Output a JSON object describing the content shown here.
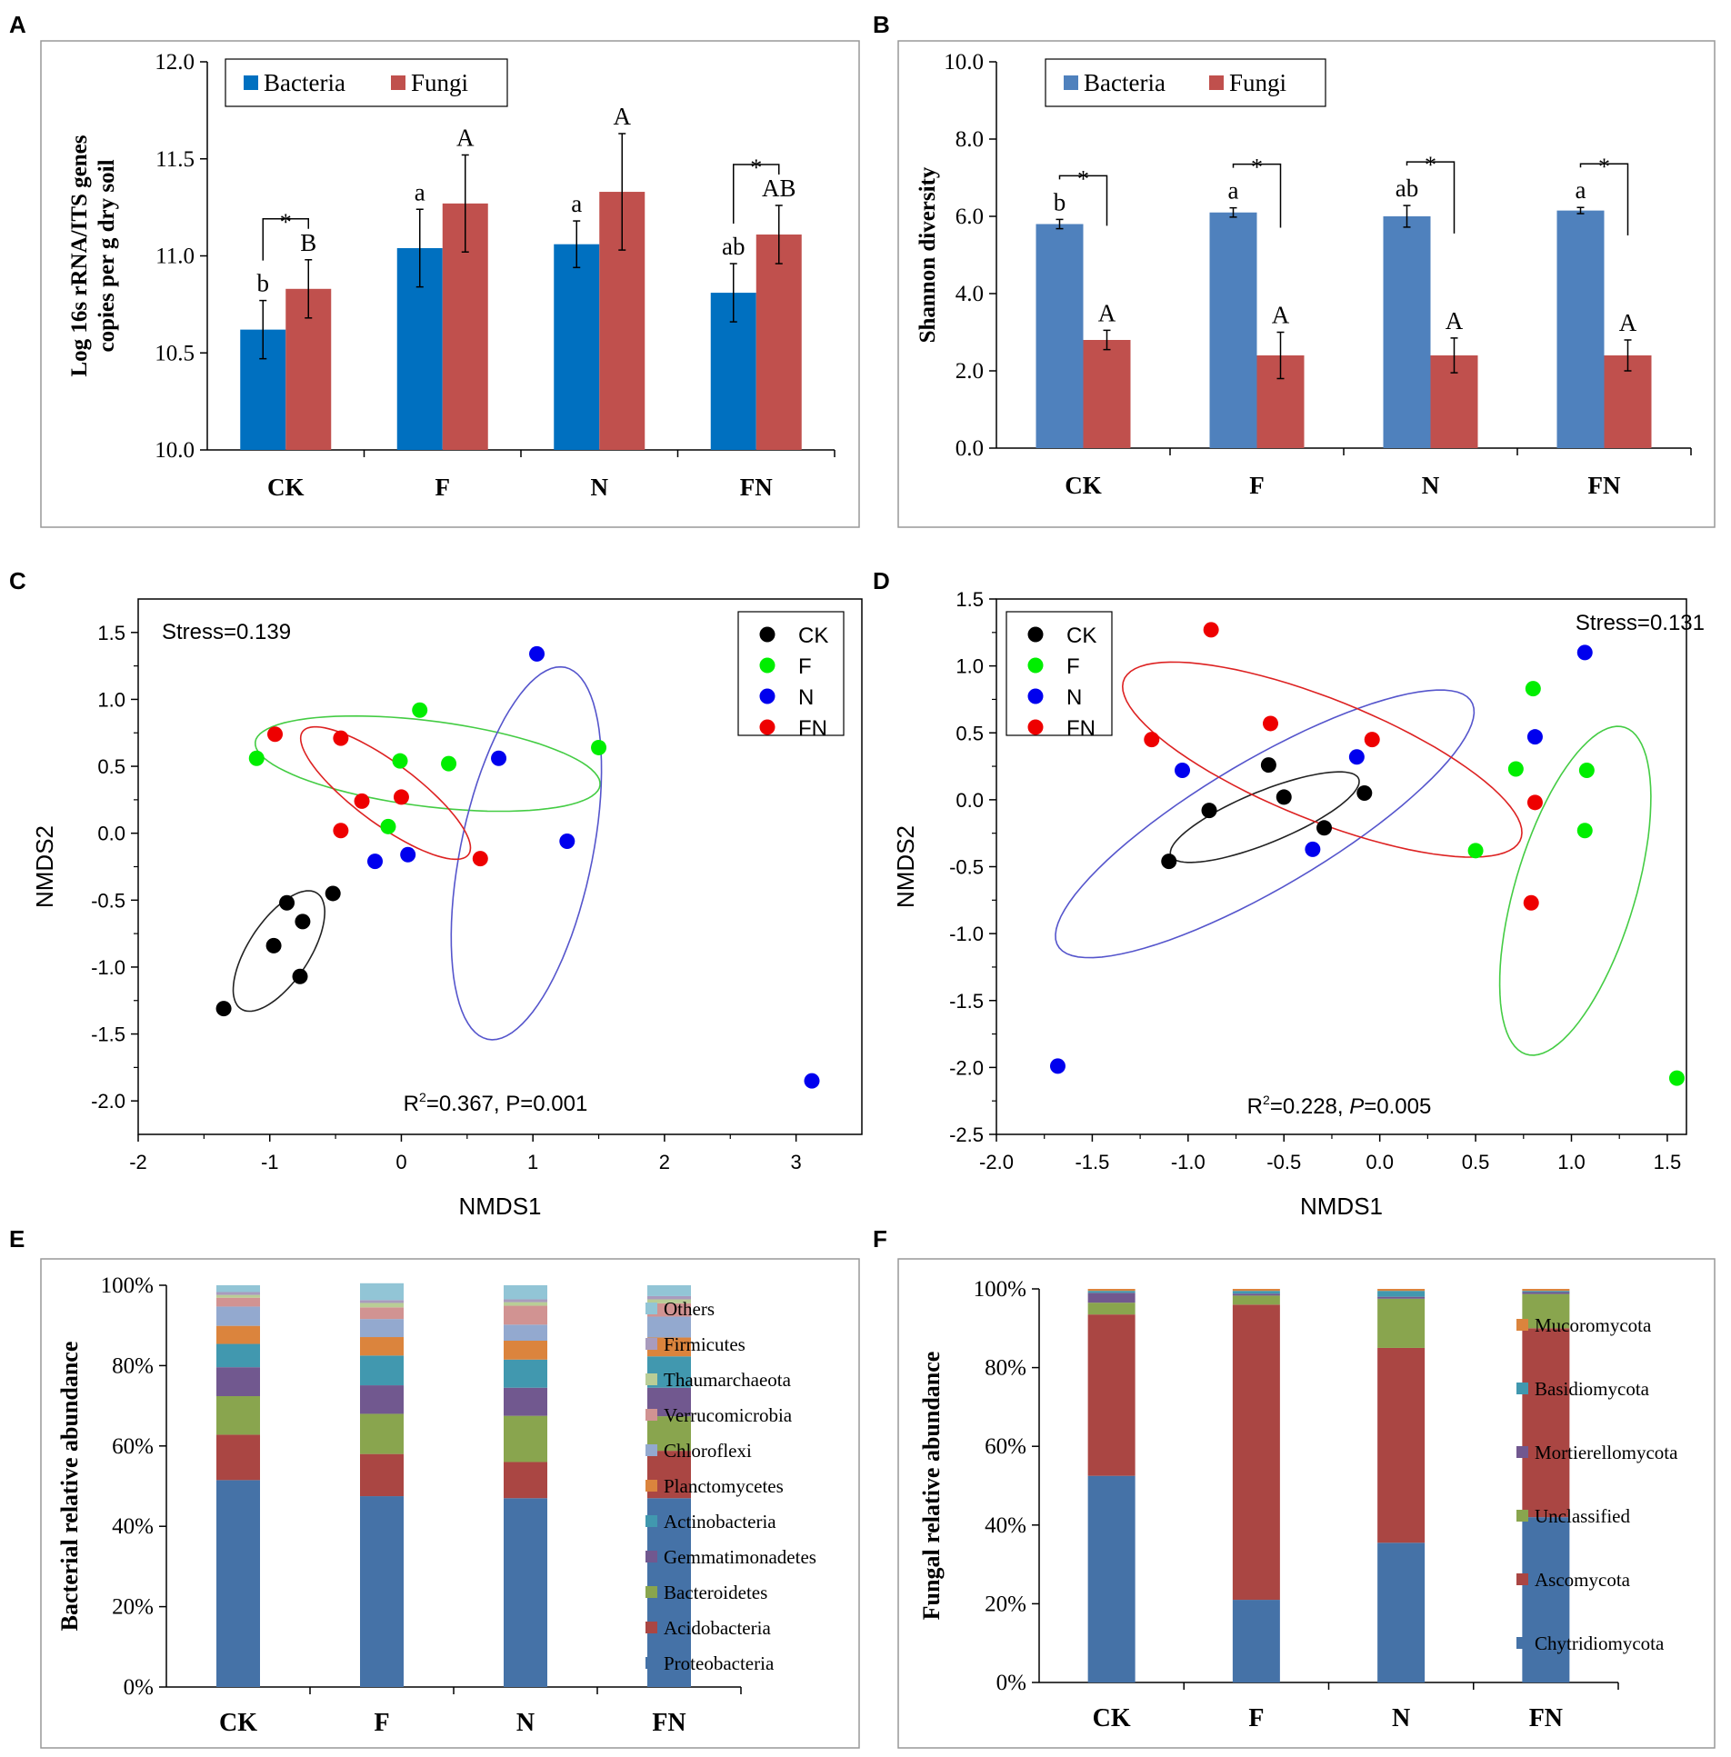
{
  "panel_labels": [
    "A",
    "B",
    "C",
    "D",
    "E",
    "F"
  ],
  "colors": {
    "bacteria": "#0070c0",
    "fungi": "#c0504d",
    "bacteria_b": "#4f81bd",
    "fungi_b": "#c0504d",
    "CK": "#000000",
    "F": "#00ee00",
    "N": "#0000ee",
    "FN": "#ee0000",
    "ellipse_CK": "#222222",
    "ellipse_F": "#44cc44",
    "ellipse_N": "#5555cc",
    "ellipse_FN": "#dd2222"
  },
  "chart_data": [
    {
      "id": "A",
      "type": "bar",
      "ylabel": [
        "Log 16s rRNA/ITS genes",
        "copies per g dry soil"
      ],
      "ylim": [
        10.0,
        12.0
      ],
      "yticks": [
        "10.0",
        "10.5",
        "11.0",
        "11.5",
        "12.0"
      ],
      "categories": [
        "CK",
        "F",
        "N",
        "FN"
      ],
      "legend": [
        "Bacteria",
        "Fungi"
      ],
      "series": [
        {
          "name": "Bacteria",
          "values": [
            10.62,
            11.04,
            11.06,
            10.81
          ],
          "errors": [
            0.15,
            0.2,
            0.12,
            0.15
          ],
          "labels": [
            "b",
            "a",
            "a",
            "ab"
          ]
        },
        {
          "name": "Fungi",
          "values": [
            10.83,
            11.27,
            11.33,
            11.11
          ],
          "errors": [
            0.15,
            0.25,
            0.3,
            0.15
          ],
          "labels": [
            "B",
            "A",
            "A",
            "AB"
          ]
        }
      ],
      "significance": [
        "*",
        "",
        "",
        "*"
      ]
    },
    {
      "id": "B",
      "type": "bar",
      "ylabel": [
        "Shannon diversity"
      ],
      "ylim": [
        0.0,
        10.0
      ],
      "yticks": [
        "0.0",
        "2.0",
        "4.0",
        "6.0",
        "8.0",
        "10.0"
      ],
      "categories": [
        "CK",
        "F",
        "N",
        "FN"
      ],
      "legend": [
        "Bacteria",
        "Fungi"
      ],
      "series": [
        {
          "name": "Bacteria",
          "values": [
            5.8,
            6.1,
            6.0,
            6.15
          ],
          "errors": [
            0.12,
            0.12,
            0.28,
            0.08
          ],
          "labels": [
            "b",
            "a",
            "ab",
            "a"
          ]
        },
        {
          "name": "Fungi",
          "values": [
            2.8,
            2.4,
            2.4,
            2.4
          ],
          "errors": [
            0.25,
            0.6,
            0.45,
            0.4
          ],
          "labels": [
            "A",
            "A",
            "A",
            "A"
          ]
        }
      ],
      "significance": [
        "*",
        "*",
        "*",
        "*"
      ]
    },
    {
      "id": "C",
      "type": "scatter",
      "xlabel": "NMDS1",
      "ylabel": "NMDS2",
      "xlim": [
        -2,
        3.5
      ],
      "ylim": [
        -2.25,
        1.75
      ],
      "xticks": [
        -2,
        -1,
        0,
        1,
        2,
        3
      ],
      "xtick_labels": [
        "-2",
        "-1",
        "0",
        "1",
        "2",
        "3"
      ],
      "yticks": [
        -2.0,
        -1.5,
        -1.0,
        -0.5,
        0.0,
        0.5,
        1.0,
        1.5
      ],
      "ytick_labels": [
        "-2.0",
        "-1.5",
        "-1.0",
        "-0.5",
        "0.0",
        "0.5",
        "1.0",
        "1.5"
      ],
      "stress": "Stress=0.139",
      "stat_r2": "R",
      "stat_rest": "=0.367, P=0.001",
      "legend": [
        "CK",
        "F",
        "N",
        "FN"
      ],
      "groups": {
        "CK": [
          [
            -0.52,
            -0.45
          ],
          [
            -0.87,
            -0.52
          ],
          [
            -0.75,
            -0.66
          ],
          [
            -0.97,
            -0.84
          ],
          [
            -0.77,
            -1.07
          ],
          [
            -1.35,
            -1.31
          ]
        ],
        "F": [
          [
            -1.1,
            0.56
          ],
          [
            0.14,
            0.92
          ],
          [
            -0.01,
            0.54
          ],
          [
            0.36,
            0.52
          ],
          [
            1.5,
            0.64
          ],
          [
            -0.1,
            0.05
          ]
        ],
        "N": [
          [
            1.03,
            1.34
          ],
          [
            0.74,
            0.56
          ],
          [
            1.26,
            -0.06
          ],
          [
            -0.2,
            -0.21
          ],
          [
            0.05,
            -0.16
          ],
          [
            3.12,
            -1.85
          ]
        ],
        "FN": [
          [
            -0.96,
            0.74
          ],
          [
            -0.46,
            0.71
          ],
          [
            -0.3,
            0.24
          ],
          [
            0.0,
            0.27
          ],
          [
            -0.46,
            0.02
          ],
          [
            0.6,
            -0.19
          ]
        ]
      },
      "ellipses": {
        "CK": {
          "cx": -0.93,
          "cy": -0.88,
          "rx": 0.52,
          "ry": 0.23,
          "angle": 56
        },
        "F": {
          "cx": 0.2,
          "cy": 0.52,
          "rx": 1.32,
          "ry": 0.32,
          "angle": -7
        },
        "N": {
          "cx": 0.95,
          "cy": -0.15,
          "rx": 1.42,
          "ry": 0.5,
          "angle": 78
        },
        "FN": {
          "cx": -0.12,
          "cy": 0.3,
          "rx": 0.78,
          "ry": 0.23,
          "angle": -36
        }
      }
    },
    {
      "id": "D",
      "type": "scatter",
      "xlabel": "NMDS1",
      "ylabel": "NMDS2",
      "xlim": [
        -2.0,
        1.6
      ],
      "ylim": [
        -2.5,
        1.5
      ],
      "xticks": [
        -2.0,
        -1.5,
        -1.0,
        -0.5,
        0.0,
        0.5,
        1.0,
        1.5
      ],
      "xtick_labels": [
        "-2.0",
        "-1.5",
        "-1.0",
        "-0.5",
        "0.0",
        "0.5",
        "1.0",
        "1.5"
      ],
      "yticks": [
        -2.5,
        -2.0,
        -1.5,
        -1.0,
        -0.5,
        0.0,
        0.5,
        1.0,
        1.5
      ],
      "ytick_labels": [
        "-2.5",
        "-2.0",
        "-1.5",
        "-1.0",
        "-0.5",
        "0.0",
        "0.5",
        "1.0",
        "1.5"
      ],
      "stress": "Stress=0.131",
      "stat_r2": "R",
      "stat_mid": "=0.228, ",
      "stat_p": "P",
      "stat_end": "=0.005",
      "legend": [
        "CK",
        "F",
        "N",
        "FN"
      ],
      "groups": {
        "CK": [
          [
            -1.1,
            -0.46
          ],
          [
            -0.89,
            -0.08
          ],
          [
            -0.58,
            0.26
          ],
          [
            -0.5,
            0.02
          ],
          [
            -0.29,
            -0.21
          ],
          [
            -0.08,
            0.05
          ]
        ],
        "F": [
          [
            0.8,
            0.83
          ],
          [
            0.71,
            0.23
          ],
          [
            1.08,
            0.22
          ],
          [
            0.5,
            -0.38
          ],
          [
            1.07,
            -0.23
          ],
          [
            1.55,
            -2.08
          ]
        ],
        "N": [
          [
            1.07,
            1.1
          ],
          [
            0.81,
            0.47
          ],
          [
            -1.03,
            0.22
          ],
          [
            -0.12,
            0.32
          ],
          [
            -0.35,
            -0.37
          ],
          [
            -1.68,
            -1.99
          ]
        ],
        "FN": [
          [
            -0.88,
            1.27
          ],
          [
            -1.19,
            0.45
          ],
          [
            -0.57,
            0.57
          ],
          [
            -0.04,
            0.45
          ],
          [
            0.81,
            -0.02
          ],
          [
            0.79,
            -0.77
          ]
        ]
      },
      "ellipses": {
        "CK": {
          "cx": -0.6,
          "cy": -0.13,
          "rx": 0.57,
          "ry": 0.18,
          "angle": 32
        },
        "F": {
          "cx": 1.02,
          "cy": -0.68,
          "rx": 1.25,
          "ry": 0.32,
          "angle": 79
        },
        "N": {
          "cx": -0.6,
          "cy": -0.18,
          "rx": 1.42,
          "ry": 0.42,
          "angle": 42
        },
        "FN": {
          "cx": -0.3,
          "cy": 0.3,
          "rx": 1.2,
          "ry": 0.42,
          "angle": -32
        }
      }
    },
    {
      "id": "E",
      "type": "stacked_bar",
      "ylabel": "Bacterial relative abundance",
      "yticks": [
        "0%",
        "20%",
        "40%",
        "60%",
        "80%",
        "100%"
      ],
      "categories": [
        "CK",
        "F",
        "N",
        "FN"
      ],
      "stack_order": [
        "Proteobacteria",
        "Acidobacteria",
        "Bacteroidetes",
        "Gemmatimonadetes",
        "Actinobacteria",
        "Planctomycetes",
        "Chloroflexi",
        "Verrucomicrobia",
        "Thaumarchaeota",
        "Firmicutes",
        "Others"
      ],
      "legend_top_to_bottom": [
        "Others",
        "Firmicutes",
        "Thaumarchaeota",
        "Verrucomicrobia",
        "Chloroflexi",
        "Planctomycetes",
        "Actinobacteria",
        "Gemmatimonadetes",
        "Bacteroidetes",
        "Acidobacteria",
        "Proteobacteria"
      ],
      "series_colors": {
        "Proteobacteria": "#4572a7",
        "Acidobacteria": "#aa4643",
        "Bacteroidetes": "#89a54e",
        "Gemmatimonadetes": "#71588f",
        "Actinobacteria": "#4198af",
        "Planctomycetes": "#db843d",
        "Chloroflexi": "#93a9cf",
        "Verrucomicrobia": "#d19392",
        "Thaumarchaeota": "#b9cd96",
        "Firmicutes": "#a99bbd",
        "Others": "#92c5d6"
      },
      "values": {
        "CK": [
          51.5,
          11.3,
          9.6,
          7.2,
          5.8,
          4.5,
          4.8,
          2.2,
          0.7,
          0.7,
          1.7
        ],
        "F": [
          47.5,
          10.5,
          10.0,
          7.1,
          7.4,
          4.6,
          4.5,
          2.9,
          1.1,
          0.7,
          4.2
        ],
        "N": [
          47.0,
          9.0,
          11.5,
          7.0,
          7.0,
          4.7,
          4.0,
          4.7,
          0.9,
          0.7,
          3.5
        ],
        "FN": [
          47.0,
          11.8,
          8.6,
          7.1,
          7.8,
          4.7,
          5.2,
          3.3,
          1.0,
          0.8,
          2.7
        ]
      }
    },
    {
      "id": "F",
      "type": "stacked_bar",
      "ylabel": "Fungal relative abundance",
      "yticks": [
        "0%",
        "20%",
        "40%",
        "60%",
        "80%",
        "100%"
      ],
      "categories": [
        "CK",
        "F",
        "N",
        "FN"
      ],
      "stack_order": [
        "Chytridiomycota",
        "Ascomycota",
        "Unclassified",
        "Mortierellomycota",
        "Basidiomycota",
        "Mucoromycota"
      ],
      "legend_top_to_bottom": [
        "Mucoromycota",
        "Basidiomycota",
        "Mortierellomycota",
        "Unclassified",
        "Ascomycota",
        "Chytridiomycota"
      ],
      "series_colors": {
        "Chytridiomycota": "#4572a7",
        "Ascomycota": "#aa4643",
        "Unclassified": "#89a54e",
        "Mortierellomycota": "#71588f",
        "Basidiomycota": "#4198af",
        "Mucoromycota": "#db843d"
      },
      "values": {
        "CK": [
          52.5,
          41.0,
          3.0,
          2.5,
          0.5,
          0.5
        ],
        "F": [
          21.0,
          75.0,
          2.3,
          0.5,
          0.7,
          0.5
        ],
        "N": [
          35.5,
          49.5,
          12.5,
          0.5,
          1.5,
          0.5
        ],
        "FN": [
          42.0,
          48.0,
          8.7,
          0.5,
          0.3,
          0.5
        ]
      }
    }
  ]
}
